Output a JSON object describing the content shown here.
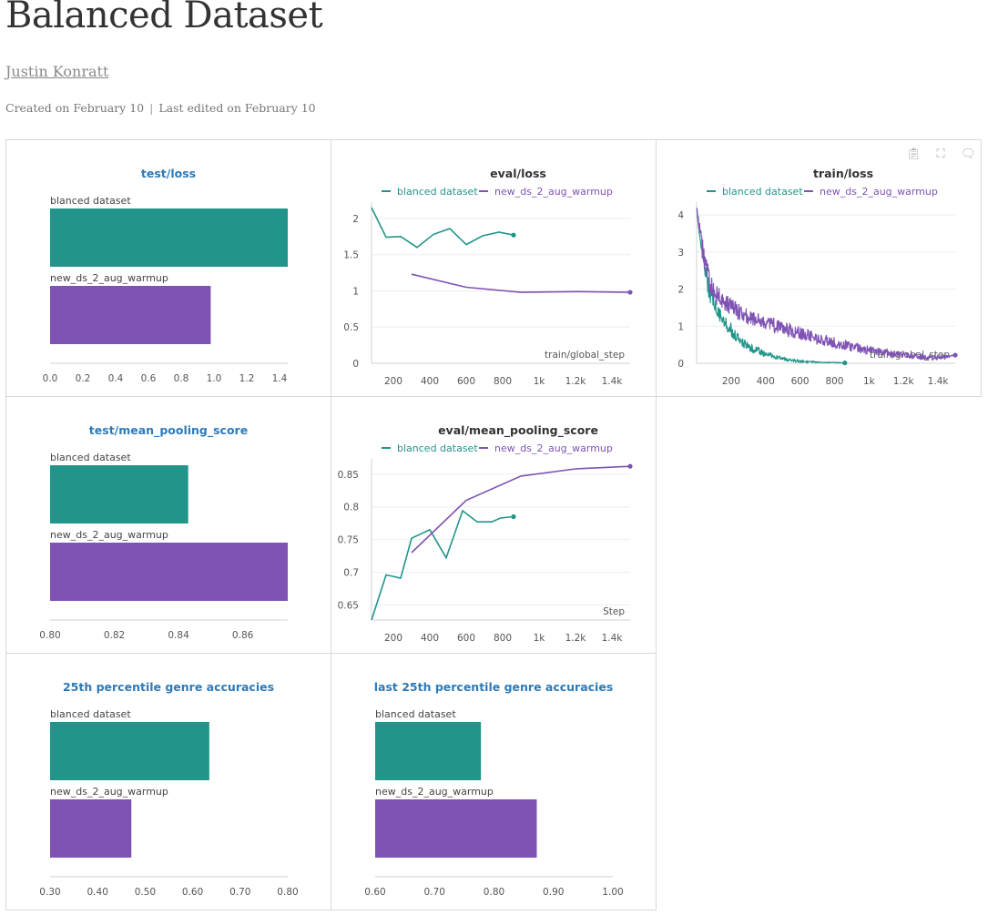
{
  "report": {
    "title": "Balanced Dataset",
    "author": "Justin Konratt",
    "created": "Created on February 10",
    "separator": "|",
    "edited": "Last edited on February 10"
  },
  "colors": {
    "teal": "#21958a",
    "purple": "#7f53b4",
    "title_link": "#2e7ab8"
  },
  "panel_tools": [
    "clipboard-icon",
    "fullscreen-icon",
    "comment-icon"
  ],
  "chart_data": [
    {
      "id": "test-loss",
      "type": "bar",
      "title": "test/loss",
      "title_style": "link",
      "categories": [
        "blanced dataset",
        "new_ds_2_aug_warmup"
      ],
      "values": [
        1.45,
        0.98
      ],
      "colors": [
        "#21958a",
        "#7f53b4"
      ],
      "xlim": [
        0,
        1.45
      ],
      "ticks": [
        0.0,
        0.2,
        0.4,
        0.6,
        0.8,
        1.0,
        1.2,
        1.4
      ],
      "tick_labels": [
        "0.0",
        "0.2",
        "0.4",
        "0.6",
        "0.8",
        "1.0",
        "1.2",
        "1.4"
      ]
    },
    {
      "id": "eval-loss",
      "type": "line",
      "title": "eval/loss",
      "title_style": "plain",
      "xlabel": "train/global_step",
      "xlim": [
        80,
        1500
      ],
      "ylim": [
        0,
        2.15
      ],
      "xticks": [
        200,
        400,
        600,
        800,
        1000,
        1200,
        1400
      ],
      "xtick_labels": [
        "200",
        "400",
        "600",
        "800",
        "1k",
        "1.2k",
        "1.4k"
      ],
      "yticks": [
        0,
        0.5,
        1,
        1.5,
        2
      ],
      "ytick_labels": [
        "0",
        "0.5",
        "1",
        "1.5",
        "2"
      ],
      "series": [
        {
          "name": "blanced dataset",
          "color": "#21958a",
          "x": [
            80,
            160,
            240,
            330,
            420,
            510,
            600,
            690,
            780,
            860
          ],
          "y": [
            2.15,
            1.74,
            1.75,
            1.6,
            1.78,
            1.86,
            1.64,
            1.76,
            1.81,
            1.77
          ]
        },
        {
          "name": "new_ds_2_aug_warmup",
          "color": "#7f53b4",
          "x": [
            300,
            600,
            900,
            1200,
            1500
          ],
          "y": [
            1.23,
            1.05,
            0.98,
            0.99,
            0.98
          ]
        }
      ]
    },
    {
      "id": "train-loss",
      "type": "line",
      "title": "train/loss",
      "title_style": "plain",
      "xlabel": "train/global_step",
      "xlim": [
        0,
        1500
      ],
      "ylim": [
        0,
        4.2
      ],
      "xticks": [
        200,
        400,
        600,
        800,
        1000,
        1200,
        1400
      ],
      "xtick_labels": [
        "200",
        "400",
        "600",
        "800",
        "1k",
        "1.2k",
        "1.4k"
      ],
      "yticks": [
        0,
        1,
        2,
        3,
        4
      ],
      "ytick_labels": [
        "0",
        "1",
        "2",
        "3",
        "4"
      ],
      "series": [
        {
          "name": "blanced dataset",
          "color": "#21958a",
          "x": [
            0,
            25,
            50,
            75,
            100,
            150,
            200,
            250,
            300,
            350,
            400,
            450,
            500,
            550,
            600,
            650,
            700,
            750,
            800,
            850,
            860
          ],
          "y": [
            4.2,
            3.3,
            2.5,
            1.9,
            1.6,
            1.2,
            0.9,
            0.6,
            0.45,
            0.35,
            0.25,
            0.18,
            0.12,
            0.08,
            0.05,
            0.04,
            0.03,
            0.02,
            0.02,
            0.01,
            0.01
          ],
          "noise": [
            0.02,
            0.25,
            0.25,
            0.25,
            0.2,
            0.2,
            0.18,
            0.15,
            0.12,
            0.1,
            0.08,
            0.06,
            0.05,
            0.04,
            0.03,
            0.02,
            0.02,
            0.01,
            0.01,
            0.01,
            0.0
          ]
        },
        {
          "name": "new_ds_2_aug_warmup",
          "color": "#7f53b4",
          "x": [
            0,
            25,
            50,
            75,
            100,
            150,
            200,
            300,
            400,
            500,
            600,
            700,
            800,
            900,
            1000,
            1100,
            1200,
            1300,
            1400,
            1500
          ],
          "y": [
            4.2,
            3.3,
            2.7,
            2.2,
            1.9,
            1.7,
            1.5,
            1.25,
            1.1,
            0.95,
            0.8,
            0.65,
            0.55,
            0.45,
            0.35,
            0.28,
            0.22,
            0.18,
            0.15,
            0.22
          ],
          "noise": [
            0.02,
            0.3,
            0.3,
            0.3,
            0.28,
            0.26,
            0.25,
            0.22,
            0.2,
            0.2,
            0.19,
            0.17,
            0.16,
            0.14,
            0.12,
            0.1,
            0.09,
            0.08,
            0.07,
            0.0
          ]
        }
      ]
    },
    {
      "id": "test-mean-pooling",
      "type": "bar",
      "title": "test/mean_pooling_score",
      "title_style": "link",
      "categories": [
        "blanced dataset",
        "new_ds_2_aug_warmup"
      ],
      "values": [
        0.843,
        0.874
      ],
      "colors": [
        "#21958a",
        "#7f53b4"
      ],
      "xlim": [
        0.8,
        0.874
      ],
      "ticks": [
        0.8,
        0.82,
        0.84,
        0.86
      ],
      "tick_labels": [
        "0.80",
        "0.82",
        "0.84",
        "0.86"
      ]
    },
    {
      "id": "eval-mean-pooling",
      "type": "line",
      "title": "eval/mean_pooling_score",
      "title_style": "plain",
      "xlabel": "Step",
      "xlim": [
        80,
        1500
      ],
      "ylim": [
        0.627,
        0.865
      ],
      "xticks": [
        200,
        400,
        600,
        800,
        1000,
        1200,
        1400
      ],
      "xtick_labels": [
        "200",
        "400",
        "600",
        "800",
        "1k",
        "1.2k",
        "1.4k"
      ],
      "yticks": [
        0.65,
        0.7,
        0.75,
        0.8,
        0.85
      ],
      "ytick_labels": [
        "0.65",
        "0.7",
        "0.75",
        "0.8",
        "0.85"
      ],
      "series": [
        {
          "name": "blanced dataset",
          "color": "#21958a",
          "x": [
            80,
            160,
            240,
            300,
            400,
            490,
            580,
            660,
            740,
            790,
            860
          ],
          "y": [
            0.627,
            0.696,
            0.691,
            0.752,
            0.765,
            0.722,
            0.794,
            0.777,
            0.777,
            0.783,
            0.785
          ]
        },
        {
          "name": "new_ds_2_aug_warmup",
          "color": "#7f53b4",
          "x": [
            300,
            600,
            900,
            1200,
            1500
          ],
          "y": [
            0.73,
            0.81,
            0.847,
            0.858,
            0.862
          ]
        }
      ]
    },
    {
      "id": "p25-genre",
      "type": "bar",
      "title": "25th percentile genre accuracies",
      "title_style": "link",
      "categories": [
        "blanced dataset",
        "new_ds_2_aug_warmup"
      ],
      "values": [
        0.635,
        0.471
      ],
      "colors": [
        "#21958a",
        "#7f53b4"
      ],
      "xlim": [
        0.3,
        0.8
      ],
      "ticks": [
        0.3,
        0.4,
        0.5,
        0.6,
        0.7,
        0.8
      ],
      "tick_labels": [
        "0.30",
        "0.40",
        "0.50",
        "0.60",
        "0.70",
        "0.80"
      ]
    },
    {
      "id": "last-p25-genre",
      "type": "bar",
      "title": "last 25th percentile genre accuracies",
      "title_style": "link",
      "categories": [
        "blanced dataset",
        "new_ds_2_aug_warmup"
      ],
      "values": [
        0.778,
        0.872
      ],
      "colors": [
        "#21958a",
        "#7f53b4"
      ],
      "xlim": [
        0.6,
        1.0
      ],
      "ticks": [
        0.6,
        0.7,
        0.8,
        0.9,
        1.0
      ],
      "tick_labels": [
        "0.60",
        "0.70",
        "0.80",
        "0.90",
        "1.00"
      ]
    }
  ]
}
